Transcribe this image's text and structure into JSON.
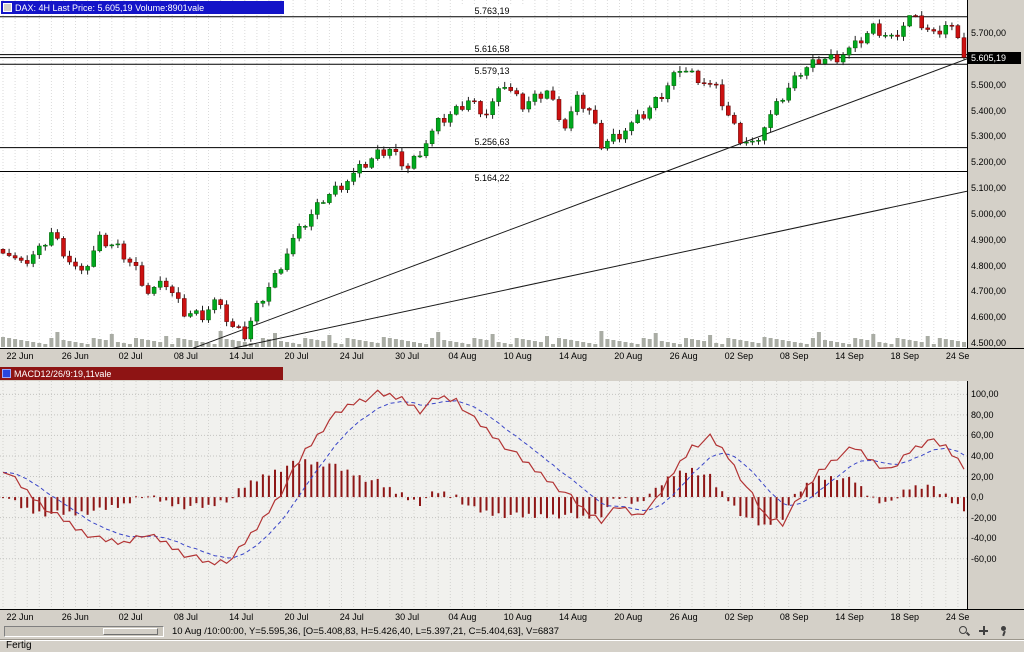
{
  "window": {
    "status_bar_text": "Fertig"
  },
  "price_panel": {
    "header": "DAX: 4H Last Price: 5.605,19 Volume:8901vale",
    "price_box": "5.605,19"
  },
  "macd_panel": {
    "header": "MACD12/26/9:19,11vale"
  },
  "toolbar": {
    "crosshair_readout": "10 Aug /10:00:00, Y=5.595,36, [O=5.408,83, H=5.426,40, L=5.397,21, C=5.404,63], V=6837"
  },
  "chart_data": [
    {
      "type": "candlestick",
      "symbol": "DAX",
      "interval": "4H",
      "last_price": 5605.19,
      "volume": 8901,
      "bars": 160,
      "x_labels": [
        "22 Jun",
        "26 Jun",
        "02 Jul",
        "08 Jul",
        "14 Jul",
        "20 Jul",
        "24 Jul",
        "30 Jul",
        "04 Aug",
        "10 Aug",
        "14 Aug",
        "20 Aug",
        "26 Aug",
        "02 Sep",
        "08 Sep",
        "14 Sep",
        "18 Sep",
        "24 Sep"
      ],
      "y_ticks": [
        {
          "label": "5.700,00",
          "value": 5700
        },
        {
          "label": "5.600,00",
          "value": 5600
        },
        {
          "label": "5.500,00",
          "value": 5500
        },
        {
          "label": "5.400,00",
          "value": 5400
        },
        {
          "label": "5.300,00",
          "value": 5300
        },
        {
          "label": "5.200,00",
          "value": 5200
        },
        {
          "label": "5.100,00",
          "value": 5100
        },
        {
          "label": "5.000,00",
          "value": 5000
        },
        {
          "label": "4.900,00",
          "value": 4900
        },
        {
          "label": "4.800,00",
          "value": 4800
        },
        {
          "label": "4.700,00",
          "value": 4700
        },
        {
          "label": "4.600,00",
          "value": 4600
        },
        {
          "label": "4.500,00",
          "value": 4500
        }
      ],
      "ylim": [
        4481,
        5828
      ],
      "current_price": 5605.19,
      "levels": [
        {
          "label": "5.763,19",
          "value": 5763.19
        },
        {
          "label": "5.616,58",
          "value": 5616.58
        },
        {
          "label": "5.579,13",
          "value": 5579.13
        },
        {
          "label": "5.256,63",
          "value": 5256.63
        },
        {
          "label": "5.164,22",
          "value": 5164.22
        }
      ],
      "trendlines": [
        {
          "x1": 0.2,
          "p1": 4480,
          "x2": 1.0,
          "p2": 5600
        },
        {
          "x1": 0.21,
          "p1": 4455,
          "x2": 1.0,
          "p2": 5088
        }
      ],
      "close_waypoints": [
        [
          0,
          4870
        ],
        [
          3,
          4800
        ],
        [
          6,
          4860
        ],
        [
          8,
          4930
        ],
        [
          11,
          4820
        ],
        [
          13,
          4760
        ],
        [
          16,
          4900
        ],
        [
          19,
          4870
        ],
        [
          22,
          4790
        ],
        [
          24,
          4700
        ],
        [
          27,
          4730
        ],
        [
          30,
          4620
        ],
        [
          33,
          4610
        ],
        [
          35,
          4660
        ],
        [
          38,
          4560
        ],
        [
          40,
          4530
        ],
        [
          42,
          4640
        ],
        [
          45,
          4760
        ],
        [
          48,
          4900
        ],
        [
          53,
          5060
        ],
        [
          58,
          5150
        ],
        [
          62,
          5230
        ],
        [
          64,
          5250
        ],
        [
          67,
          5180
        ],
        [
          70,
          5280
        ],
        [
          72,
          5350
        ],
        [
          75,
          5400
        ],
        [
          77,
          5440
        ],
        [
          80,
          5390
        ],
        [
          83,
          5500
        ],
        [
          86,
          5420
        ],
        [
          90,
          5480
        ],
        [
          93,
          5340
        ],
        [
          95,
          5440
        ],
        [
          97,
          5400
        ],
        [
          99,
          5270
        ],
        [
          102,
          5310
        ],
        [
          106,
          5380
        ],
        [
          109,
          5460
        ],
        [
          112,
          5570
        ],
        [
          115,
          5530
        ],
        [
          118,
          5480
        ],
        [
          120,
          5380
        ],
        [
          122,
          5290
        ],
        [
          124,
          5270
        ],
        [
          126,
          5340
        ],
        [
          129,
          5450
        ],
        [
          132,
          5550
        ],
        [
          135,
          5600
        ],
        [
          138,
          5610
        ],
        [
          141,
          5650
        ],
        [
          144,
          5720
        ],
        [
          147,
          5680
        ],
        [
          150,
          5760
        ],
        [
          152,
          5730
        ],
        [
          154,
          5690
        ],
        [
          156,
          5730
        ],
        [
          158,
          5700
        ],
        [
          159,
          5605
        ]
      ],
      "colors": {
        "up": "#00a81e",
        "down": "#cc1111",
        "wick": "#222222",
        "volume_bars": "#a9aca4",
        "level_lines": "#000000"
      }
    },
    {
      "type": "macd",
      "params": "12/26/9",
      "x_labels": [
        "22 Jun",
        "26 Jun",
        "02 Jul",
        "08 Jul",
        "14 Jul",
        "20 Jul",
        "24 Jul",
        "30 Jul",
        "04 Aug",
        "10 Aug",
        "14 Aug",
        "20 Aug",
        "26 Aug",
        "02 Sep",
        "08 Sep",
        "14 Sep",
        "18 Sep",
        "24 Sep"
      ],
      "y_ticks": [
        {
          "label": "100,00",
          "value": 100
        },
        {
          "label": "80,00",
          "value": 80
        },
        {
          "label": "60,00",
          "value": 60
        },
        {
          "label": "40,00",
          "value": 40
        },
        {
          "label": "20,00",
          "value": 20
        },
        {
          "label": "0,0",
          "value": 0
        },
        {
          "label": "-20,00",
          "value": -20
        },
        {
          "label": "-40,00",
          "value": -40
        },
        {
          "label": "-60,00",
          "value": -60
        }
      ],
      "ylim": [
        -109,
        113
      ],
      "macd_waypoints": [
        [
          0,
          28
        ],
        [
          4,
          5
        ],
        [
          8,
          -15
        ],
        [
          12,
          -30
        ],
        [
          16,
          -42
        ],
        [
          20,
          -45
        ],
        [
          23,
          -35
        ],
        [
          26,
          -42
        ],
        [
          30,
          -55
        ],
        [
          34,
          -65
        ],
        [
          38,
          -60
        ],
        [
          42,
          -30
        ],
        [
          46,
          5
        ],
        [
          50,
          45
        ],
        [
          54,
          75
        ],
        [
          58,
          92
        ],
        [
          62,
          100
        ],
        [
          66,
          96
        ],
        [
          69,
          85
        ],
        [
          72,
          97
        ],
        [
          75,
          95
        ],
        [
          78,
          75
        ],
        [
          82,
          55
        ],
        [
          86,
          35
        ],
        [
          90,
          18
        ],
        [
          93,
          5
        ],
        [
          96,
          -12
        ],
        [
          99,
          -22
        ],
        [
          102,
          -10
        ],
        [
          105,
          -18
        ],
        [
          108,
          -5
        ],
        [
          111,
          25
        ],
        [
          114,
          50
        ],
        [
          117,
          58
        ],
        [
          120,
          40
        ],
        [
          123,
          10
        ],
        [
          126,
          -18
        ],
        [
          129,
          -25
        ],
        [
          132,
          0
        ],
        [
          135,
          25
        ],
        [
          138,
          40
        ],
        [
          141,
          48
        ],
        [
          144,
          35
        ],
        [
          147,
          25
        ],
        [
          150,
          45
        ],
        [
          153,
          55
        ],
        [
          156,
          48
        ],
        [
          159,
          30
        ]
      ],
      "colors": {
        "macd_line": "#b23434",
        "signal_line": "#3a46c8",
        "histogram": "#8e1616"
      }
    }
  ]
}
